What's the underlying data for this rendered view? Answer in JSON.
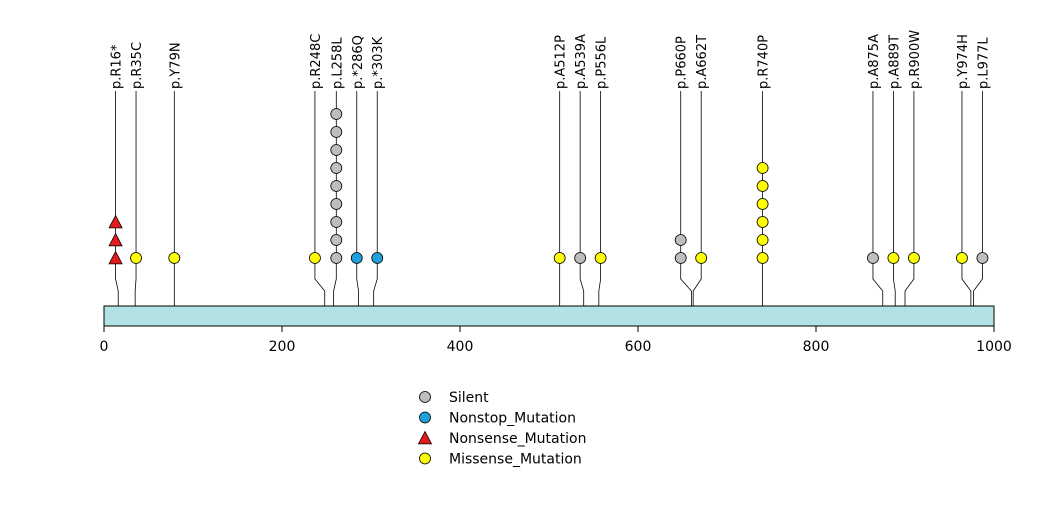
{
  "chart_data": {
    "type": "lollipop",
    "xlim": [
      0,
      1000
    ],
    "x_ticks": [
      0,
      200,
      400,
      600,
      800,
      1000
    ],
    "protein_bar_color": "#b3e2e5",
    "mutation_types": [
      {
        "key": "silent",
        "name": "Silent",
        "shape": "circle",
        "color": "#bebebe"
      },
      {
        "key": "nonstop",
        "name": "Nonstop_Mutation",
        "shape": "circle",
        "color": "#1ea0dc"
      },
      {
        "key": "nonsense",
        "name": "Nonsense_Mutation",
        "shape": "triangle",
        "color": "#e41a1c"
      },
      {
        "key": "missense",
        "name": "Missense_Mutation",
        "shape": "circle",
        "color": "#ffff00"
      }
    ],
    "mutations": [
      {
        "label": "p.R16*",
        "position": 16,
        "display_position": 13,
        "counts": {
          "nonsense": 3
        }
      },
      {
        "label": "p.R35C",
        "position": 35,
        "display_position": 36,
        "counts": {
          "missense": 1
        }
      },
      {
        "label": "p.Y79N",
        "position": 79,
        "display_position": 79,
        "counts": {
          "missense": 1
        }
      },
      {
        "label": "p.R248C",
        "position": 248,
        "display_position": 237,
        "counts": {
          "missense": 1
        }
      },
      {
        "label": "p.L258L",
        "position": 258,
        "display_position": 261,
        "counts": {
          "silent": 9
        }
      },
      {
        "label": "p.*286Q",
        "position": 286,
        "display_position": 284,
        "counts": {
          "nonstop": 1
        }
      },
      {
        "label": "p.*303K",
        "position": 303,
        "display_position": 307,
        "counts": {
          "nonstop": 1
        }
      },
      {
        "label": "p.A512P",
        "position": 512,
        "display_position": 512,
        "counts": {
          "missense": 1
        }
      },
      {
        "label": "p.A539A",
        "position": 539,
        "display_position": 535,
        "counts": {
          "silent": 1
        }
      },
      {
        "label": "p.P556L",
        "position": 556,
        "display_position": 558,
        "counts": {
          "missense": 1
        }
      },
      {
        "label": "p.P660P",
        "position": 660,
        "display_position": 648,
        "counts": {
          "silent": 2
        }
      },
      {
        "label": "p.A662T",
        "position": 662,
        "display_position": 671,
        "counts": {
          "missense": 1
        }
      },
      {
        "label": "p.R740P",
        "position": 740,
        "display_position": 740,
        "counts": {
          "missense": 6
        }
      },
      {
        "label": "p.A875A",
        "position": 875,
        "display_position": 864,
        "counts": {
          "silent": 1
        }
      },
      {
        "label": "p.A889T",
        "position": 889,
        "display_position": 887,
        "counts": {
          "missense": 1
        }
      },
      {
        "label": "p.R900W",
        "position": 900,
        "display_position": 910,
        "counts": {
          "missense": 1
        }
      },
      {
        "label": "p.Y974H",
        "position": 974,
        "display_position": 964,
        "counts": {
          "missense": 1
        }
      },
      {
        "label": "p.L977L",
        "position": 977,
        "display_position": 987,
        "counts": {
          "silent": 1
        }
      }
    ]
  }
}
